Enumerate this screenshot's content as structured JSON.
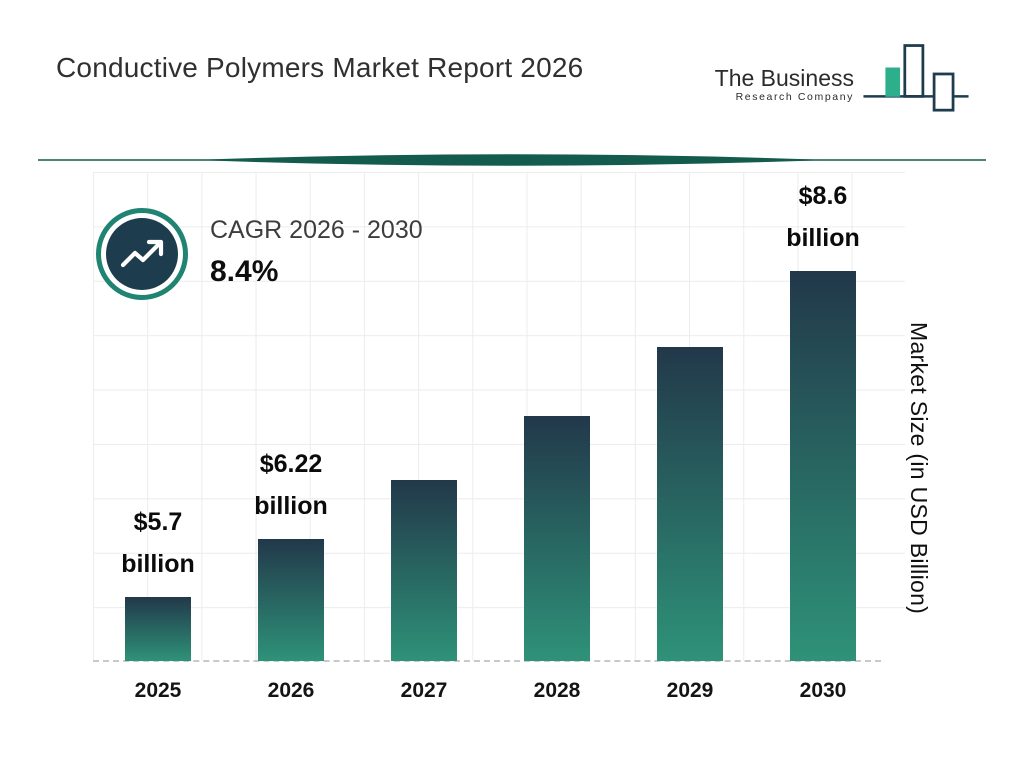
{
  "header": {
    "title": "Conductive Polymers Market Report 2026",
    "logo": {
      "line1": "The Business",
      "line2": "Research Company"
    }
  },
  "cagr": {
    "label": "CAGR 2026 - 2030",
    "value": "8.4%"
  },
  "chart_data": {
    "type": "bar",
    "categories": [
      "2025",
      "2026",
      "2027",
      "2028",
      "2029",
      "2030"
    ],
    "values": [
      5.7,
      6.22,
      6.74,
      7.31,
      7.92,
      8.6
    ],
    "bar_labels": [
      [
        "$5.7",
        "billion"
      ],
      [
        "$6.22",
        "billion"
      ],
      null,
      null,
      null,
      [
        "$8.6",
        "billion"
      ]
    ],
    "unlabeled_values_estimated_from_cagr": true,
    "title": "Conductive Polymers Market Report 2026",
    "xlabel": "",
    "ylabel": "Market Size (in USD Billion)",
    "unit": "USD Billion",
    "grid": true,
    "legend": false,
    "axis_truncated": true
  },
  "colors": {
    "navy": "#1D3C4E",
    "accent_teal": "#2E9278",
    "ring_teal": "#1F8471",
    "bar_gradient_top": "#22384A",
    "bar_gradient_bottom": "#2E9278",
    "divider_teal": "#135B4D",
    "logo_teal": "#2EAF8C"
  }
}
